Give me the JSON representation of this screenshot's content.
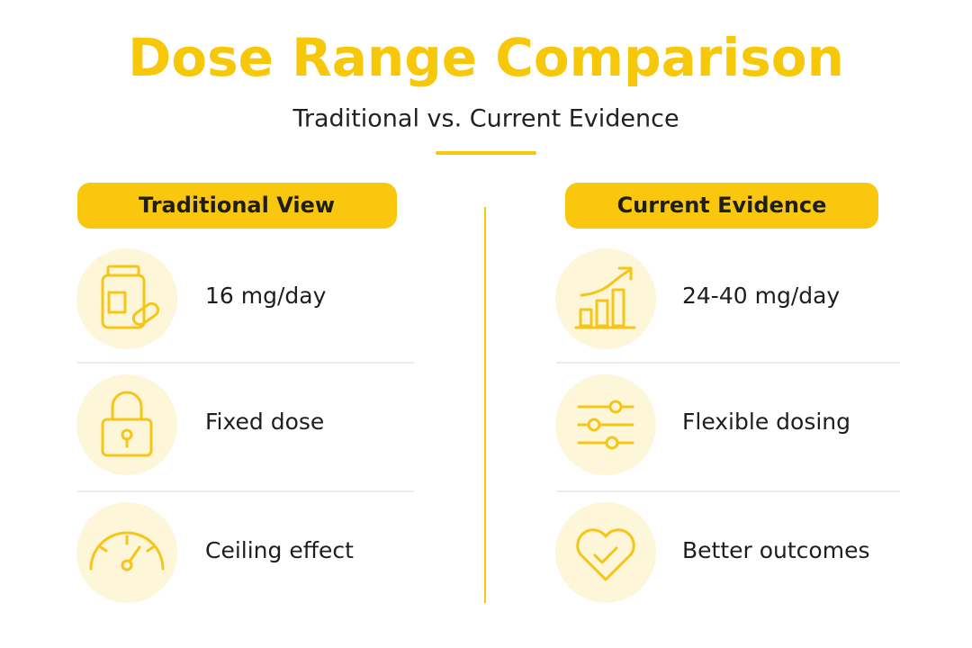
{
  "header": {
    "title": "Dose Range Comparison",
    "subtitle": "Traditional vs. Current Evidence"
  },
  "columns": [
    {
      "heading": "Traditional View",
      "items": [
        {
          "label": "16 mg/day"
        },
        {
          "label": "Fixed dose"
        },
        {
          "label": "Ceiling effect"
        }
      ]
    },
    {
      "heading": "Current Evidence",
      "items": [
        {
          "label": "24-40 mg/day"
        },
        {
          "label": "Flexible dosing"
        },
        {
          "label": "Better outcomes"
        }
      ]
    }
  ]
}
